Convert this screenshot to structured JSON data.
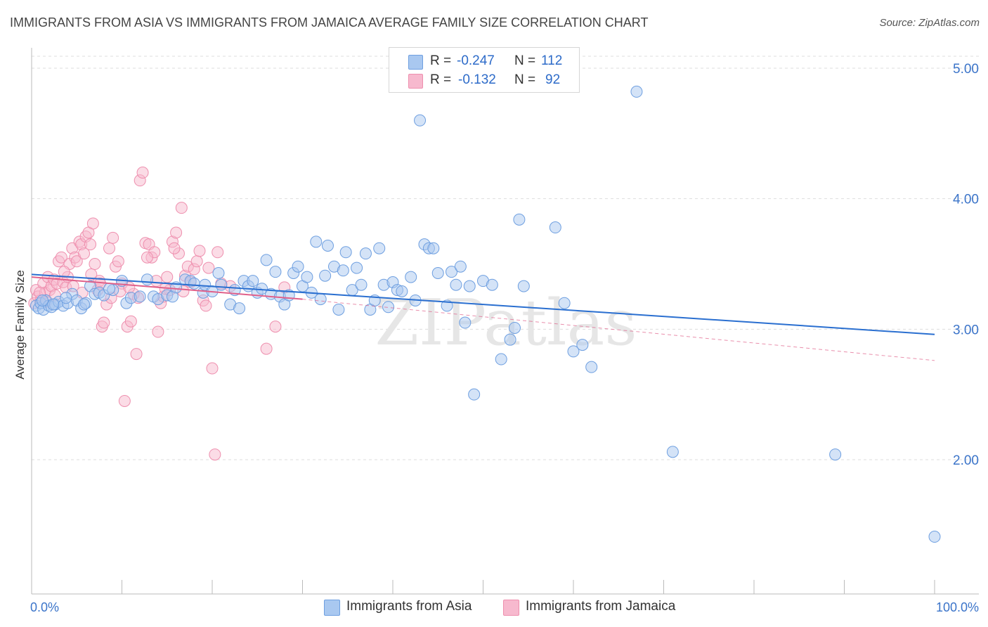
{
  "title": "IMMIGRANTS FROM ASIA VS IMMIGRANTS FROM JAMAICA AVERAGE FAMILY SIZE CORRELATION CHART",
  "source": "Source: ZipAtlas.com",
  "watermark": "ZIPatlas",
  "legend": {
    "r_label": "R =",
    "n_label": "N =",
    "asia": {
      "r": "-0.247",
      "n": "112"
    },
    "jamaica": {
      "r": "-0.132",
      "n": "92"
    }
  },
  "colors": {
    "asia_fill": "#a9c8f0",
    "asia_stroke": "#6e9fe0",
    "asia_line": "#2a6fd0",
    "jamaica_fill": "#f7b9ce",
    "jamaica_stroke": "#ee8fae",
    "jamaica_line": "#e0608a",
    "tick_label": "#3b74c9"
  },
  "chart_data": {
    "type": "scatter",
    "ylabel": "Average Family Size",
    "xlabel": "",
    "x_tick_labels": [
      "0.0%",
      "100.0%"
    ],
    "y_tick_labels": [
      "5.00",
      "4.00",
      "3.00",
      "2.00"
    ],
    "y_ticks": [
      5,
      4,
      3,
      2
    ],
    "xlim": [
      0,
      100
    ],
    "ylim": [
      1.1,
      5.1
    ],
    "grid": "horizontal dashed",
    "series": [
      {
        "name": "Immigrants from Asia",
        "color": "#a9c8f0",
        "trend": {
          "x": [
            0,
            100
          ],
          "y": [
            3.42,
            2.96
          ]
        },
        "points": [
          [
            0.5,
            3.18
          ],
          [
            0.8,
            3.16
          ],
          [
            1.0,
            3.2
          ],
          [
            1.3,
            3.15
          ],
          [
            1.6,
            3.22
          ],
          [
            1.9,
            3.18
          ],
          [
            2.2,
            3.17
          ],
          [
            2.6,
            3.19
          ],
          [
            3.0,
            3.21
          ],
          [
            3.5,
            3.18
          ],
          [
            4.0,
            3.2
          ],
          [
            4.5,
            3.27
          ],
          [
            5.0,
            3.22
          ],
          [
            5.5,
            3.16
          ],
          [
            6.0,
            3.2
          ],
          [
            6.5,
            3.33
          ],
          [
            7.0,
            3.27
          ],
          [
            7.5,
            3.28
          ],
          [
            8.0,
            3.26
          ],
          [
            9.0,
            3.3
          ],
          [
            10.0,
            3.37
          ],
          [
            10.5,
            3.2
          ],
          [
            11.0,
            3.24
          ],
          [
            12.0,
            3.25
          ],
          [
            12.8,
            3.38
          ],
          [
            13.5,
            3.25
          ],
          [
            14.0,
            3.23
          ],
          [
            15.0,
            3.26
          ],
          [
            15.6,
            3.25
          ],
          [
            16.0,
            3.32
          ],
          [
            17.0,
            3.38
          ],
          [
            17.6,
            3.37
          ],
          [
            18.0,
            3.35
          ],
          [
            19.0,
            3.28
          ],
          [
            19.2,
            3.34
          ],
          [
            20.0,
            3.29
          ],
          [
            20.7,
            3.43
          ],
          [
            21.0,
            3.34
          ],
          [
            22.0,
            3.19
          ],
          [
            22.5,
            3.3
          ],
          [
            23.0,
            3.16
          ],
          [
            23.5,
            3.37
          ],
          [
            24.0,
            3.33
          ],
          [
            24.5,
            3.37
          ],
          [
            25.0,
            3.28
          ],
          [
            25.5,
            3.31
          ],
          [
            26.0,
            3.53
          ],
          [
            26.5,
            3.27
          ],
          [
            27.0,
            3.44
          ],
          [
            27.5,
            3.25
          ],
          [
            28.0,
            3.19
          ],
          [
            28.5,
            3.26
          ],
          [
            29.0,
            3.43
          ],
          [
            29.5,
            3.48
          ],
          [
            30.0,
            3.33
          ],
          [
            30.5,
            3.4
          ],
          [
            31.0,
            3.28
          ],
          [
            31.5,
            3.67
          ],
          [
            32.0,
            3.23
          ],
          [
            32.5,
            3.41
          ],
          [
            32.8,
            3.64
          ],
          [
            33.5,
            3.48
          ],
          [
            34.0,
            3.15
          ],
          [
            34.5,
            3.45
          ],
          [
            34.8,
            3.59
          ],
          [
            35.5,
            3.3
          ],
          [
            36.0,
            3.47
          ],
          [
            36.5,
            3.34
          ],
          [
            37.0,
            3.58
          ],
          [
            37.5,
            3.15
          ],
          [
            38.0,
            3.22
          ],
          [
            38.5,
            3.62
          ],
          [
            39.0,
            3.34
          ],
          [
            39.5,
            3.17
          ],
          [
            40.0,
            3.36
          ],
          [
            40.5,
            3.3
          ],
          [
            41.0,
            3.29
          ],
          [
            42.0,
            3.4
          ],
          [
            42.5,
            3.22
          ],
          [
            43.0,
            4.6
          ],
          [
            43.5,
            3.65
          ],
          [
            44.0,
            3.62
          ],
          [
            44.5,
            3.62
          ],
          [
            45.0,
            3.43
          ],
          [
            46.0,
            3.18
          ],
          [
            46.5,
            3.44
          ],
          [
            47.0,
            3.34
          ],
          [
            47.5,
            3.48
          ],
          [
            48.0,
            3.05
          ],
          [
            48.5,
            3.33
          ],
          [
            49.0,
            2.5
          ],
          [
            50.0,
            3.37
          ],
          [
            51.0,
            3.34
          ],
          [
            52.0,
            2.77
          ],
          [
            53.0,
            2.92
          ],
          [
            53.5,
            3.01
          ],
          [
            54.0,
            3.84
          ],
          [
            54.5,
            3.33
          ],
          [
            58.0,
            3.78
          ],
          [
            59.0,
            3.2
          ],
          [
            60.0,
            2.83
          ],
          [
            61.0,
            2.88
          ],
          [
            62.0,
            2.71
          ],
          [
            67.0,
            4.82
          ],
          [
            71.0,
            2.06
          ],
          [
            89.0,
            2.04
          ],
          [
            100.0,
            1.41
          ],
          [
            1.2,
            3.22
          ],
          [
            2.4,
            3.19
          ],
          [
            3.8,
            3.24
          ],
          [
            5.8,
            3.19
          ],
          [
            8.6,
            3.31
          ]
        ]
      },
      {
        "name": "Immigrants from Jamaica",
        "color": "#f7b9ce",
        "trend": {
          "x": [
            0,
            30
          ],
          "y": [
            3.4,
            3.23
          ]
        },
        "trend_dashed": {
          "x": [
            30,
            100
          ],
          "y": [
            3.23,
            2.76
          ]
        },
        "points": [
          [
            0.3,
            3.2
          ],
          [
            0.5,
            3.3
          ],
          [
            0.7,
            3.25
          ],
          [
            1.0,
            3.22
          ],
          [
            1.3,
            3.35
          ],
          [
            1.5,
            3.28
          ],
          [
            1.8,
            3.4
          ],
          [
            2.0,
            3.3
          ],
          [
            2.2,
            3.33
          ],
          [
            2.5,
            3.38
          ],
          [
            2.8,
            3.35
          ],
          [
            3.0,
            3.52
          ],
          [
            3.3,
            3.55
          ],
          [
            3.5,
            3.36
          ],
          [
            3.8,
            3.32
          ],
          [
            4.0,
            3.4
          ],
          [
            4.2,
            3.5
          ],
          [
            4.5,
            3.62
          ],
          [
            4.8,
            3.55
          ],
          [
            5.0,
            3.52
          ],
          [
            5.3,
            3.67
          ],
          [
            5.5,
            3.65
          ],
          [
            5.8,
            3.58
          ],
          [
            6.0,
            3.71
          ],
          [
            6.3,
            3.74
          ],
          [
            6.5,
            3.65
          ],
          [
            6.8,
            3.81
          ],
          [
            7.0,
            3.5
          ],
          [
            7.3,
            3.3
          ],
          [
            7.5,
            3.37
          ],
          [
            7.8,
            3.02
          ],
          [
            8.0,
            3.05
          ],
          [
            8.3,
            3.19
          ],
          [
            8.6,
            3.62
          ],
          [
            9.0,
            3.7
          ],
          [
            9.3,
            3.48
          ],
          [
            9.6,
            3.52
          ],
          [
            10.0,
            3.35
          ],
          [
            10.3,
            2.45
          ],
          [
            10.6,
            3.02
          ],
          [
            11.0,
            3.06
          ],
          [
            11.3,
            3.27
          ],
          [
            11.6,
            2.81
          ],
          [
            12.0,
            4.14
          ],
          [
            12.3,
            4.2
          ],
          [
            12.6,
            3.66
          ],
          [
            13.0,
            3.65
          ],
          [
            13.3,
            3.55
          ],
          [
            13.6,
            3.59
          ],
          [
            14.0,
            2.98
          ],
          [
            14.3,
            3.2
          ],
          [
            14.6,
            3.25
          ],
          [
            15.0,
            3.4
          ],
          [
            15.3,
            3.3
          ],
          [
            15.6,
            3.67
          ],
          [
            16.0,
            3.74
          ],
          [
            16.3,
            3.58
          ],
          [
            16.6,
            3.93
          ],
          [
            17.0,
            3.41
          ],
          [
            17.3,
            3.48
          ],
          [
            17.6,
            3.36
          ],
          [
            18.0,
            3.46
          ],
          [
            18.3,
            3.52
          ],
          [
            18.6,
            3.6
          ],
          [
            19.0,
            3.22
          ],
          [
            19.3,
            3.18
          ],
          [
            19.6,
            3.47
          ],
          [
            20.0,
            2.7
          ],
          [
            20.3,
            2.04
          ],
          [
            20.6,
            3.59
          ],
          [
            21.0,
            3.35
          ],
          [
            22.0,
            3.33
          ],
          [
            26.0,
            2.85
          ],
          [
            27.0,
            3.02
          ],
          [
            28.0,
            3.32
          ],
          [
            0.9,
            3.28
          ],
          [
            1.6,
            3.21
          ],
          [
            2.6,
            3.26
          ],
          [
            3.6,
            3.44
          ],
          [
            4.6,
            3.33
          ],
          [
            5.6,
            3.28
          ],
          [
            6.6,
            3.42
          ],
          [
            7.6,
            3.35
          ],
          [
            8.8,
            3.24
          ],
          [
            9.8,
            3.29
          ],
          [
            10.8,
            3.32
          ],
          [
            11.8,
            3.24
          ],
          [
            12.8,
            3.55
          ],
          [
            13.8,
            3.37
          ],
          [
            14.8,
            3.31
          ],
          [
            15.8,
            3.62
          ],
          [
            16.8,
            3.29
          ]
        ]
      }
    ]
  },
  "bottom_legend": {
    "asia_label": "Immigrants from Asia",
    "jamaica_label": "Immigrants from Jamaica"
  }
}
